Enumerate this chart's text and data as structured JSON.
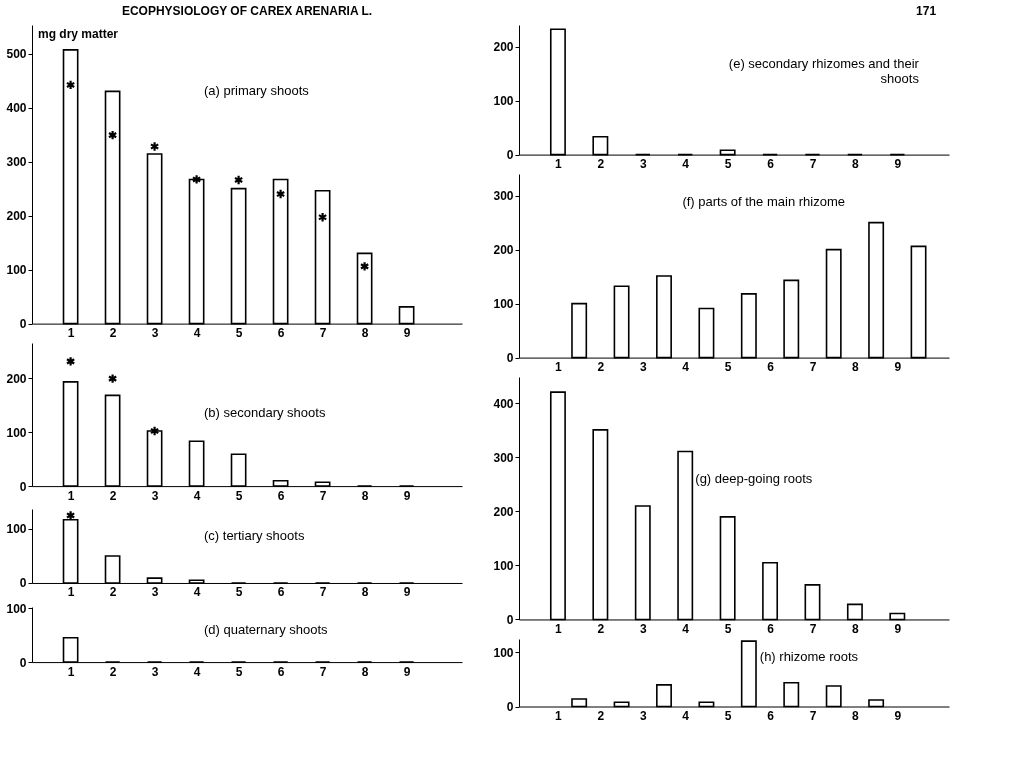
{
  "chart_data": [
    {
      "type": "bar",
      "title": "(a) primary shoots",
      "ylabel": "mg dry matter",
      "annotations": [
        "ECOPHYSIOLOGY OF CAREX ARENARIA L."
      ],
      "marker": "cross",
      "xlim": [
        0.2,
        10.2
      ],
      "xticks": [
        1,
        2,
        3,
        4,
        5,
        6,
        7,
        8,
        9
      ],
      "ylim": [
        0,
        553
      ],
      "yticks": [
        0,
        100,
        200,
        300,
        400,
        500
      ],
      "series": [
        {
          "color": "#000000",
          "x": [
            1,
            2,
            3,
            4,
            5,
            6,
            7,
            8,
            9
          ],
          "values": [
            507,
            430,
            314,
            267,
            250,
            267,
            246,
            130,
            31
          ]
        },
        {
          "type": "scatter",
          "color": "#000000",
          "x": [
            1,
            2,
            3,
            4,
            5,
            6,
            7,
            8
          ],
          "values": [
            442,
            349,
            328,
            267,
            266,
            240,
            197,
            106
          ]
        }
      ]
    },
    {
      "type": "bar",
      "title": "(b) secondary shoots",
      "marker": "cross",
      "xlim": [
        0.2,
        10.2
      ],
      "xticks": [
        1,
        2,
        3,
        4,
        5,
        6,
        7,
        8,
        9
      ],
      "ylim": [
        0,
        265
      ],
      "yticks": [
        0,
        100,
        200
      ],
      "series": [
        {
          "color": "#000000",
          "x": [
            1,
            2,
            3,
            4,
            5,
            6,
            7,
            8,
            9
          ],
          "values": [
            193,
            168,
            102,
            83,
            59,
            10,
            7,
            0,
            0
          ]
        },
        {
          "type": "scatter",
          "color": "#000000",
          "x": [
            1,
            2,
            3
          ],
          "values": [
            231,
            199,
            102
          ]
        }
      ]
    },
    {
      "type": "bar",
      "title": "(c) tertiary shoots",
      "marker": "cross",
      "xlim": [
        0.2,
        10.2
      ],
      "xticks": [
        1,
        2,
        3,
        4,
        5,
        6,
        7,
        8,
        9
      ],
      "ylim": [
        0,
        137
      ],
      "yticks": [
        0,
        100
      ],
      "series": [
        {
          "color": "#000000",
          "x": [
            1,
            2,
            3,
            4,
            5,
            6,
            7,
            8,
            9
          ],
          "values": [
            117,
            50,
            9,
            5,
            0,
            0,
            0,
            0,
            0
          ]
        },
        {
          "type": "scatter",
          "color": "#000000",
          "x": [
            1
          ],
          "values": [
            125
          ]
        }
      ]
    },
    {
      "type": "bar",
      "title": "(d) quaternary shoots",
      "xlim": [
        0.2,
        10.2
      ],
      "xticks": [
        1,
        2,
        3,
        4,
        5,
        6,
        7,
        8,
        9
      ],
      "ylim": [
        0,
        102
      ],
      "yticks": [
        0,
        100
      ],
      "series": [
        {
          "color": "#000000",
          "x": [
            1,
            2,
            3,
            4,
            5,
            6,
            7,
            8,
            9
          ],
          "values": [
            45,
            0,
            0,
            0,
            0,
            0,
            0,
            0,
            0
          ]
        }
      ]
    },
    {
      "type": "bar",
      "title": "(e) secondary rhizomes and their\nshoots",
      "annotations": [
        "171"
      ],
      "xlim": [
        0.2,
        10.1
      ],
      "xticks": [
        1,
        2,
        3,
        4,
        5,
        6,
        7,
        8,
        9
      ],
      "ylim": [
        0,
        240
      ],
      "yticks": [
        0,
        100,
        200
      ],
      "series": [
        {
          "color": "#000000",
          "x": [
            1,
            2,
            3,
            4,
            5,
            6,
            7,
            8,
            9
          ],
          "values": [
            232,
            33,
            0,
            0,
            8,
            0,
            0,
            0,
            0
          ]
        }
      ]
    },
    {
      "type": "bar",
      "title": "(f) parts of the main rhizome",
      "xlim": [
        0.2,
        10.1
      ],
      "xticks": [
        1,
        2,
        3,
        4,
        5,
        6,
        7,
        8,
        9
      ],
      "ylim": [
        0,
        340
      ],
      "yticks": [
        0,
        100,
        200,
        300
      ],
      "series": [
        {
          "color": "#000000",
          "x": [
            1.5,
            2.5,
            3.5,
            4.5,
            5.5,
            6.5,
            7.5,
            8.5,
            9.5
          ],
          "values": [
            100,
            132,
            151,
            91,
            118,
            143,
            200,
            250,
            206
          ]
        }
      ]
    },
    {
      "type": "bar",
      "title": "(g) deep-going roots",
      "xlim": [
        0.2,
        10.1
      ],
      "xticks": [
        1,
        2,
        3,
        4,
        5,
        6,
        7,
        8,
        9
      ],
      "ylim": [
        0,
        449
      ],
      "yticks": [
        0,
        100,
        200,
        300,
        400
      ],
      "series": [
        {
          "color": "#000000",
          "x": [
            1,
            2,
            3,
            4,
            5,
            6,
            7,
            8,
            9
          ],
          "values": [
            421,
            351,
            210,
            311,
            190,
            105,
            64,
            28,
            11
          ]
        }
      ]
    },
    {
      "type": "bar",
      "title": "(h) rhizome roots",
      "xlim": [
        0.2,
        10.1
      ],
      "xticks": [
        1,
        2,
        3,
        4,
        5,
        6,
        7,
        8,
        9
      ],
      "ylim": [
        0,
        125
      ],
      "yticks": [
        0,
        100
      ],
      "series": [
        {
          "color": "#000000",
          "x": [
            1.5,
            2.5,
            3.5,
            4.5,
            5.5,
            6.5,
            7.5,
            8.5
          ],
          "values": [
            14,
            8,
            40,
            8,
            121,
            44,
            38,
            12
          ]
        }
      ]
    }
  ]
}
